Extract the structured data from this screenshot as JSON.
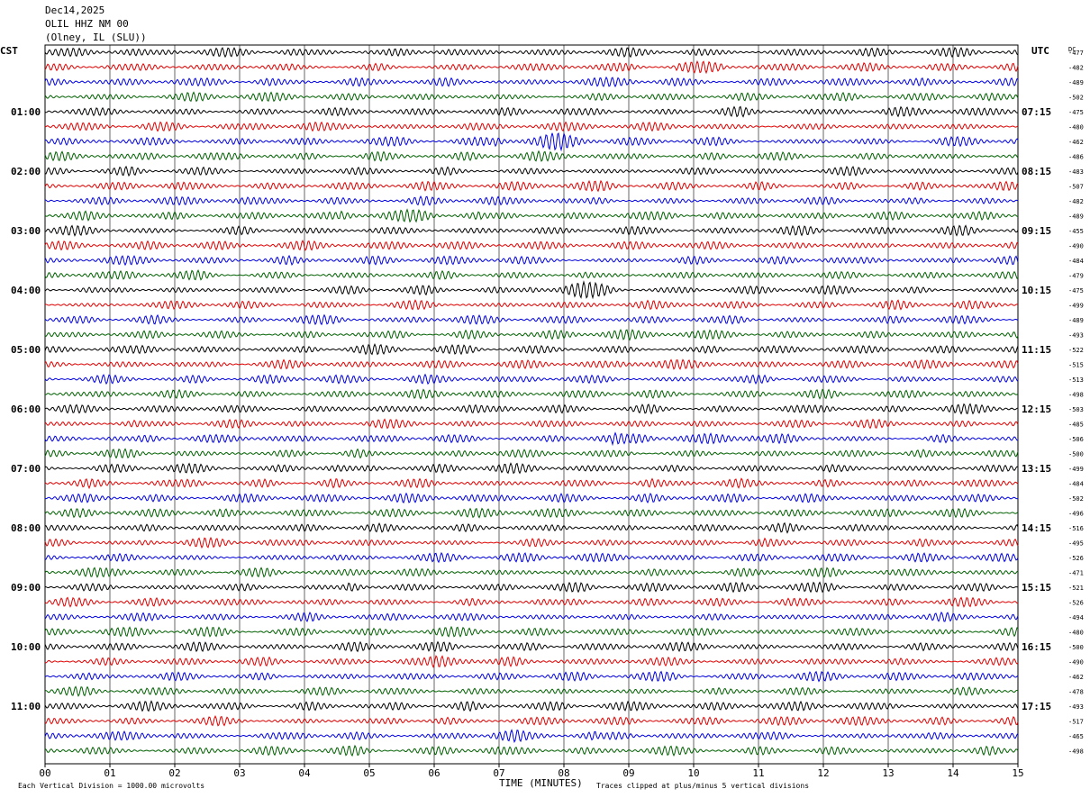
{
  "header": {
    "date": "Dec14,2025",
    "station": "OLIL HHZ NM 00",
    "location": "(Olney, IL (SLU))"
  },
  "left_tz": "CST",
  "right_tz": "UTC",
  "dc_header": "DC",
  "footer": {
    "scale": "Each Vertical Division = 1000.00 microvolts",
    "xlabel": "TIME (MINUTES)",
    "clip_note": "Traces clipped at plus/minus 5 vertical divisions"
  },
  "colors": {
    "trace_cycle": [
      "#000000",
      "#e00000",
      "#0000e0",
      "#006000"
    ],
    "grid": "#000000"
  },
  "chart_data": {
    "type": "line",
    "title": "",
    "xlabel": "TIME (MINUTES)",
    "xlim": [
      0,
      15
    ],
    "x_ticks": [
      "00",
      "01",
      "02",
      "03",
      "04",
      "05",
      "06",
      "07",
      "08",
      "09",
      "10",
      "11",
      "12",
      "13",
      "14",
      "15"
    ],
    "rows_per_hour": 4,
    "left_labels": [
      "01:00",
      "02:00",
      "03:00",
      "04:00",
      "05:00",
      "06:00",
      "07:00",
      "08:00",
      "09:00",
      "10:00",
      "11:00"
    ],
    "right_labels": [
      "07:15",
      "08:15",
      "09:15",
      "10:15",
      "11:15",
      "12:15",
      "13:15",
      "14:15",
      "15:15",
      "16:15",
      "17:15"
    ],
    "dc_offsets": [
      "-477",
      "-482",
      "-489",
      "-502",
      "-475",
      "-480",
      "-462",
      "-486",
      "-483",
      "-507",
      "-482",
      "-489",
      "-455",
      "-490",
      "-484",
      "-479",
      "-475",
      "-499",
      "-489",
      "-493",
      "-522",
      "-515",
      "-513",
      "-498",
      "-503",
      "-485",
      "-506",
      "-500",
      "-499",
      "-484",
      "-502",
      "-496",
      "-516",
      "-495",
      "-526",
      "-471",
      "-521",
      "-526",
      "-494",
      "-480",
      "-500",
      "-490",
      "-462",
      "-478",
      "-493",
      "-517",
      "-465",
      "-498"
    ]
  }
}
